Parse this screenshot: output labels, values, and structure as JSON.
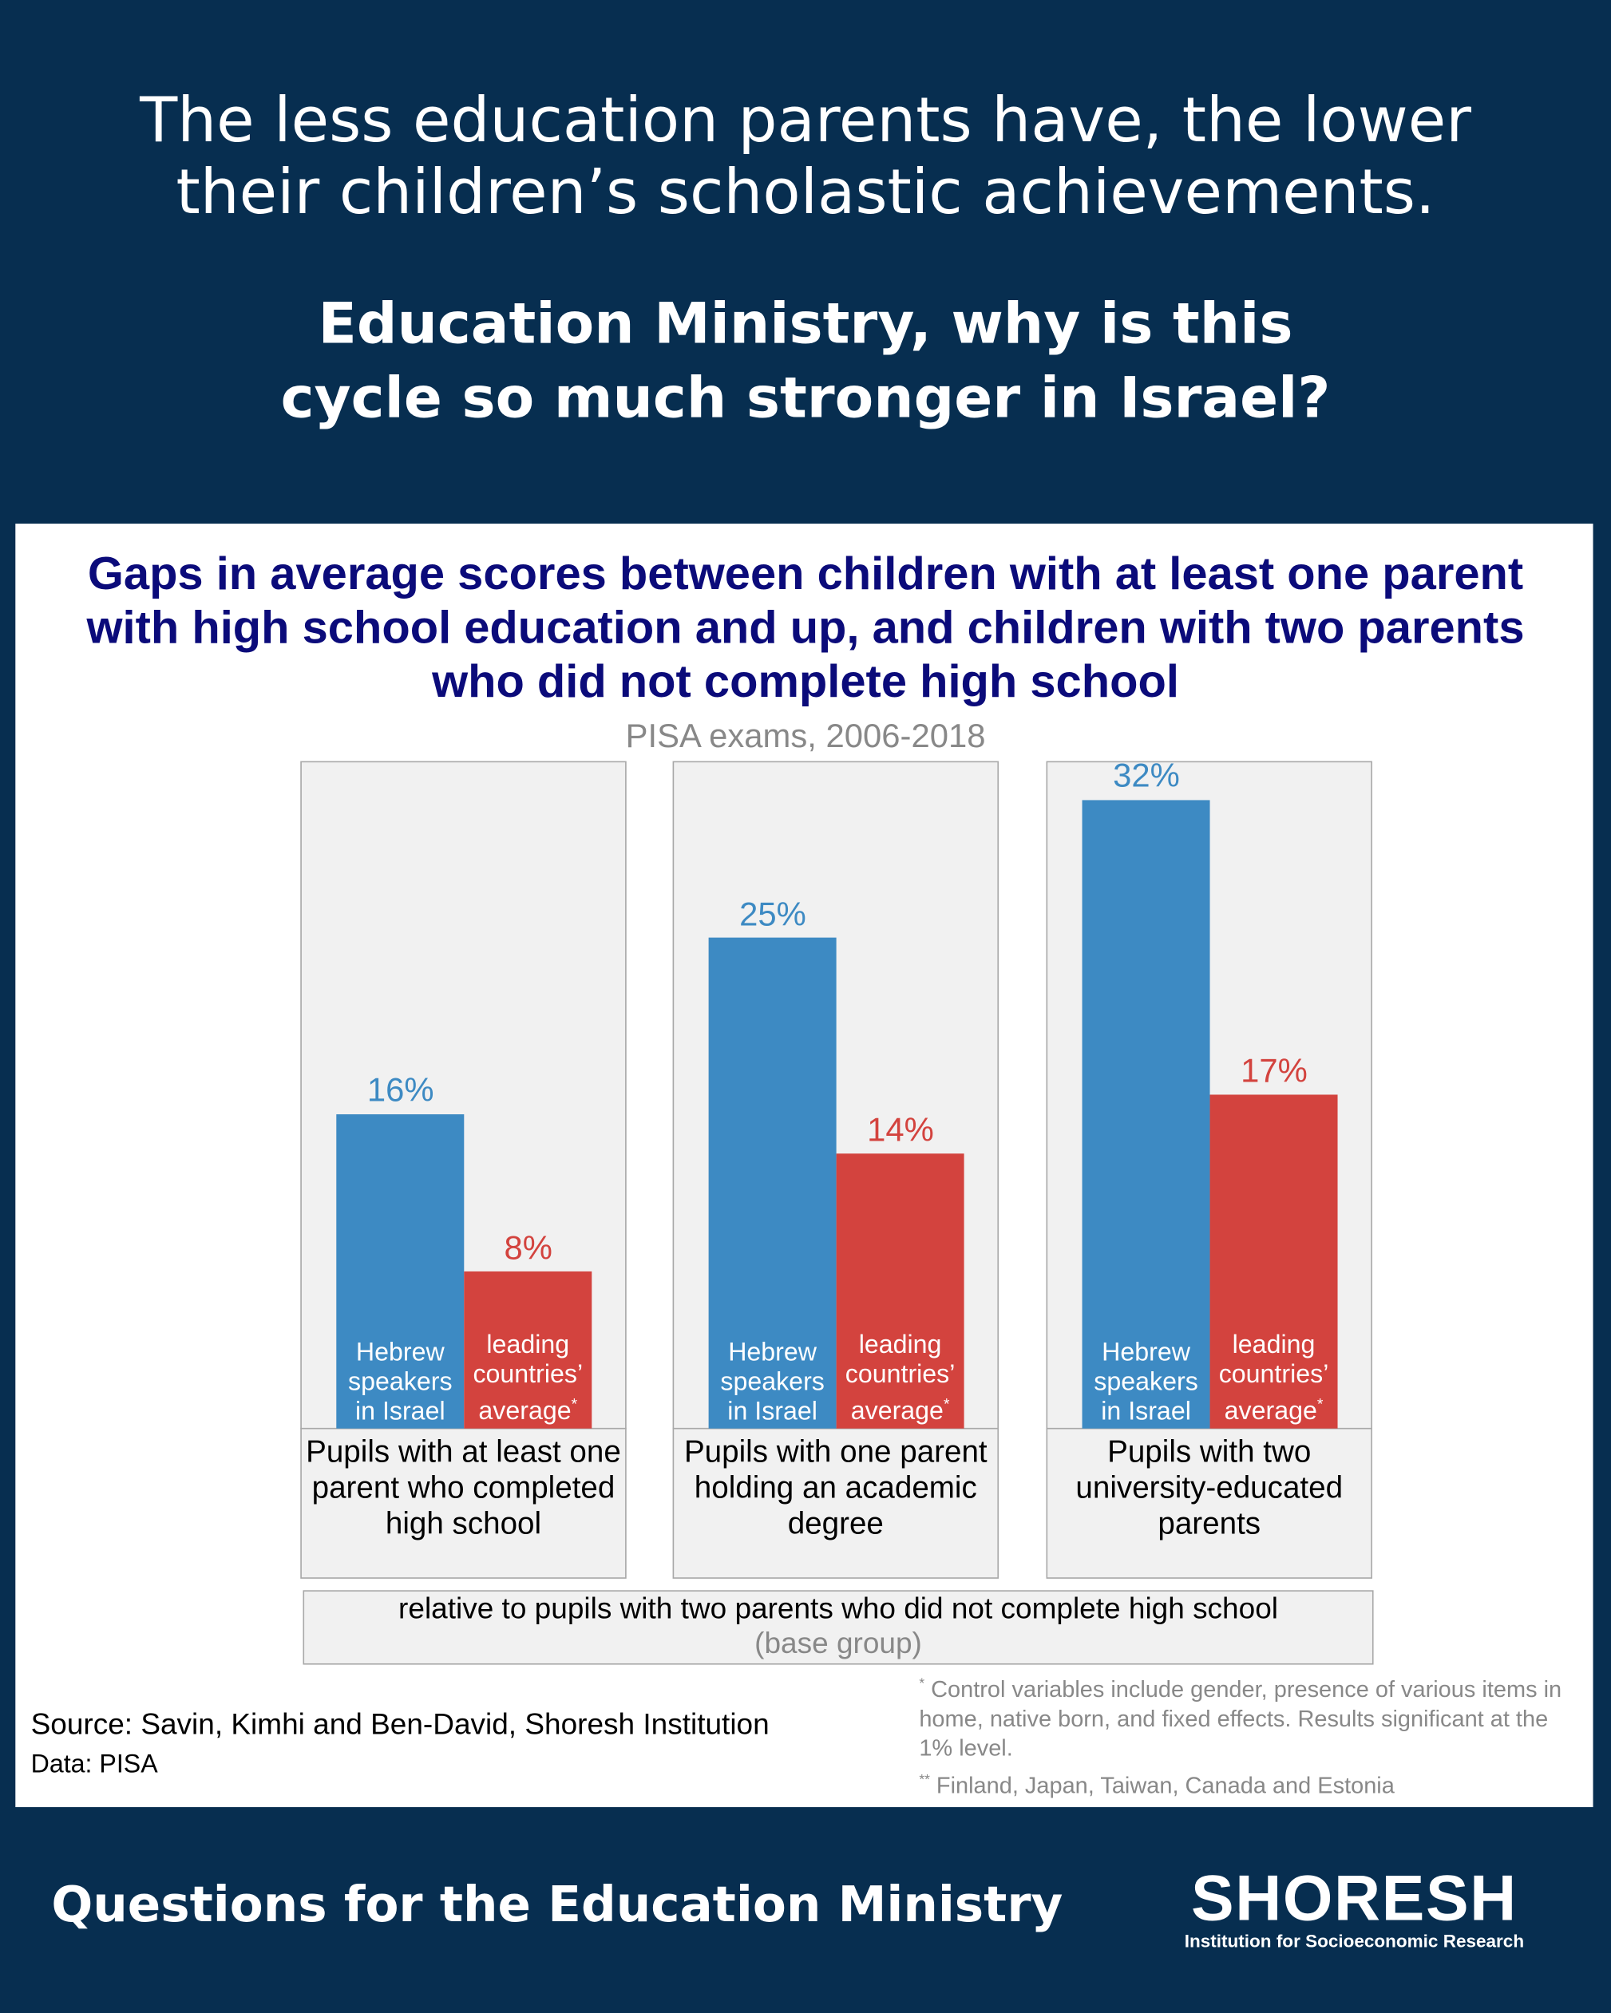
{
  "header": {
    "title": "The less education parents have, the lower their children’s scholastic achievements.",
    "question": "Education Ministry, why is this cycle so much stronger in Israel?"
  },
  "chart_data": {
    "type": "bar",
    "title": "Gaps in average scores between children with at least one parent with high school education and up, and children with two parents who did not complete high school",
    "subtitle": "PISA exams, 2006-2018",
    "categories": [
      "Pupils with at least one parent who completed high school",
      "Pupils with one parent holding an academic degree",
      "Pupils with two university-educated parents"
    ],
    "series": [
      {
        "name": "Hebrew speakers in Israel",
        "color": "#3d8ac3",
        "values": [
          16,
          25,
          32
        ],
        "value_labels": [
          "16%",
          "25%",
          "32%"
        ]
      },
      {
        "name": "leading countries’ average",
        "name_mark": "*",
        "color": "#d3433e",
        "values": [
          8,
          14,
          17
        ],
        "value_labels": [
          "8%",
          "14%",
          "17%"
        ]
      }
    ],
    "base_note": "relative to pupils with two parents who did not complete high school",
    "base_group": "(base group)",
    "source": "Source: Savin, Kimhi and Ben-David, Shoresh Institution",
    "data_source": "Data: PISA",
    "footnotes": [
      {
        "mark": "*",
        "text": "Control variables include gender, presence of various items in home, native born, and fixed effects. Results significant at the 1% level."
      },
      {
        "mark": "**",
        "text": "Finland, Japan, Taiwan, Canada and Estonia"
      }
    ]
  },
  "footer": {
    "series_title": "Questions for the Education Ministry",
    "logo": "SHORESH",
    "logo_subtitle": "Institution for Socioeconomic Research"
  }
}
